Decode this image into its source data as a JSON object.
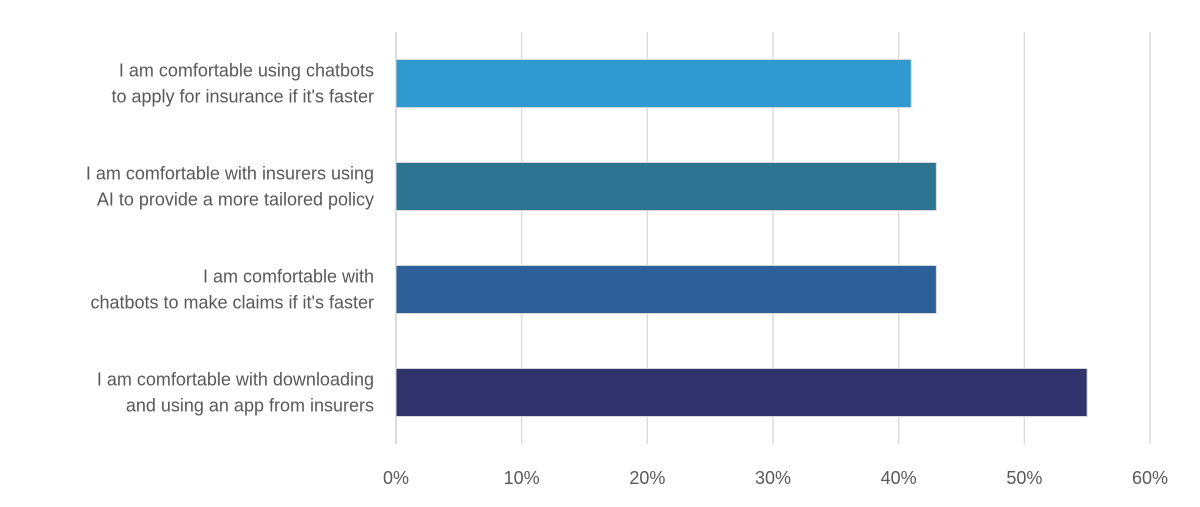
{
  "chart_data": {
    "type": "bar",
    "orientation": "horizontal",
    "title": "",
    "xlabel": "",
    "ylabel": "",
    "categories": [
      [
        "I am comfortable using chatbots",
        "to apply for insurance if it's faster"
      ],
      [
        "I am comfortable with insurers using",
        "AI to provide a more tailored policy"
      ],
      [
        "I am comfortable with",
        "chatbots to make claims if it's faster"
      ],
      [
        "I am comfortable with downloading",
        "and using an app from insurers"
      ]
    ],
    "values": [
      41,
      43,
      43,
      55
    ],
    "value_unit": "%",
    "bar_colors": [
      "#2e9ad0",
      "#2d7492",
      "#2d5f98",
      "#31346c"
    ],
    "xlim": [
      0,
      60
    ],
    "xticks": [
      0,
      10,
      20,
      30,
      40,
      50,
      60
    ],
    "xtick_labels": [
      "0%",
      "10%",
      "20%",
      "30%",
      "40%",
      "50%",
      "60%"
    ],
    "grid": "vertical",
    "legend": "none"
  }
}
